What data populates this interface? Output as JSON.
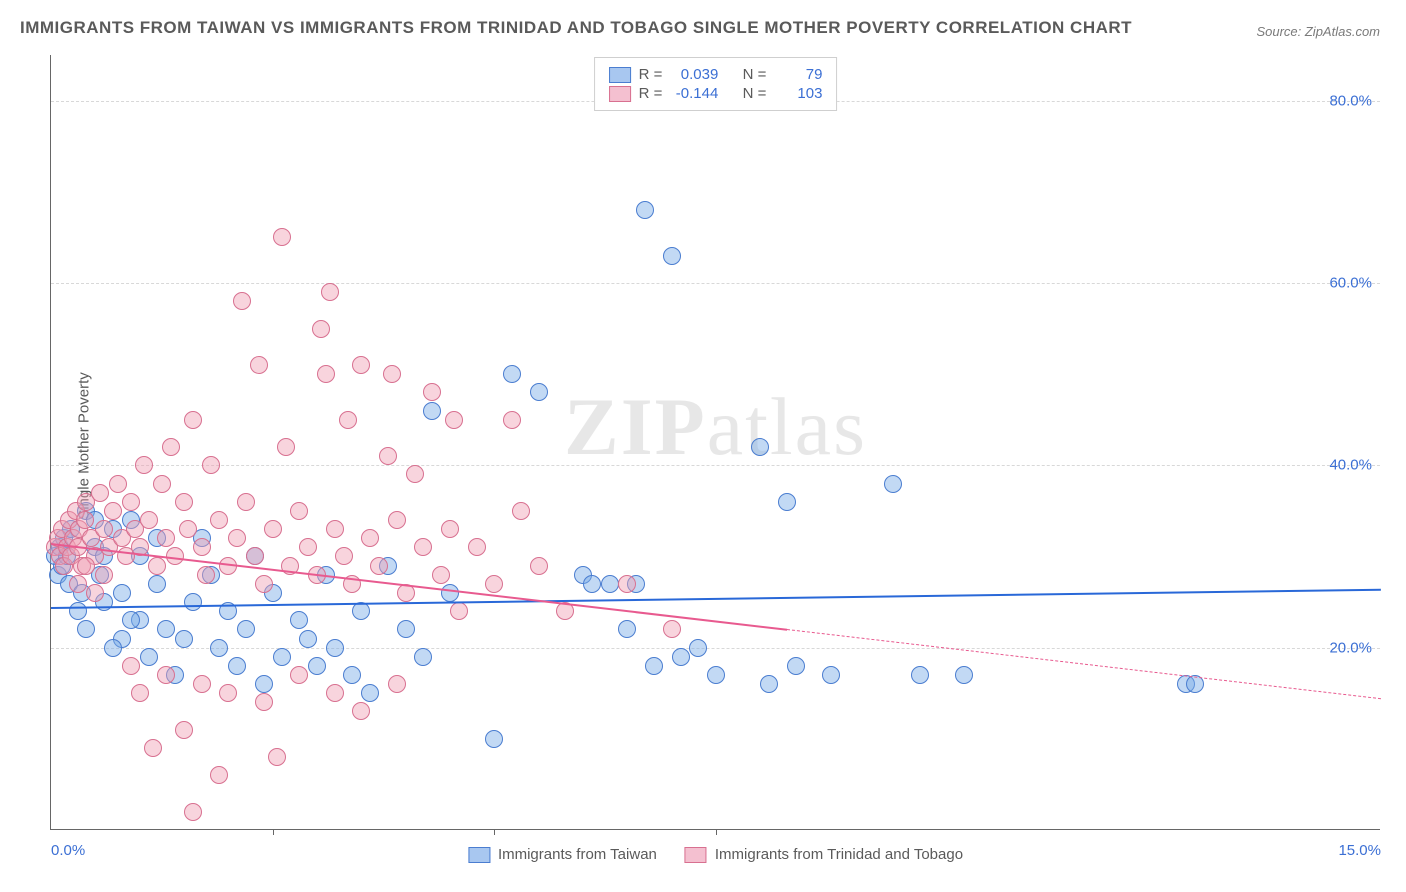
{
  "title": "IMMIGRANTS FROM TAIWAN VS IMMIGRANTS FROM TRINIDAD AND TOBAGO SINGLE MOTHER POVERTY CORRELATION CHART",
  "source": "Source: ZipAtlas.com",
  "ylabel": "Single Mother Poverty",
  "watermark_bold": "ZIP",
  "watermark_rest": "atlas",
  "chart": {
    "type": "scatter",
    "background_color": "#ffffff",
    "grid_color": "#d8d8d8",
    "axis_color": "#666666",
    "xlim": [
      0,
      15
    ],
    "ylim": [
      0,
      85
    ],
    "xticks": [
      0,
      15
    ],
    "xtick_labels": [
      "0.0%",
      "15.0%"
    ],
    "xtick_marks": [
      2.5,
      5.0,
      7.5
    ],
    "yticks": [
      20,
      40,
      60,
      80
    ],
    "ytick_labels": [
      "20.0%",
      "40.0%",
      "60.0%",
      "80.0%"
    ],
    "tick_color": "#3b6fd4",
    "tick_fontsize": 15,
    "point_radius": 9,
    "series": [
      {
        "name": "Immigrants from Taiwan",
        "color_fill": "rgba(120,170,230,0.45)",
        "color_stroke": "#4a7dd0",
        "swatch_fill": "#a8c7f0",
        "swatch_border": "#4a7dd0",
        "R": "0.039",
        "N": "79",
        "trend": {
          "y_start": 24.5,
          "y_end": 26.5,
          "color": "#2968d8",
          "solid_to_x": 15
        },
        "points": [
          [
            0.05,
            30
          ],
          [
            0.08,
            28
          ],
          [
            0.1,
            31
          ],
          [
            0.12,
            29
          ],
          [
            0.15,
            32
          ],
          [
            0.18,
            30
          ],
          [
            0.2,
            27
          ],
          [
            0.22,
            33
          ],
          [
            0.3,
            24
          ],
          [
            0.35,
            26
          ],
          [
            0.4,
            22
          ],
          [
            0.5,
            31
          ],
          [
            0.55,
            28
          ],
          [
            0.6,
            25
          ],
          [
            0.7,
            33
          ],
          [
            0.8,
            21
          ],
          [
            0.4,
            35
          ],
          [
            0.5,
            34
          ],
          [
            0.6,
            30
          ],
          [
            0.9,
            34
          ],
          [
            1.0,
            23
          ],
          [
            1.1,
            19
          ],
          [
            1.2,
            27
          ],
          [
            1.3,
            22
          ],
          [
            1.4,
            17
          ],
          [
            1.5,
            21
          ],
          [
            1.6,
            25
          ],
          [
            1.7,
            32
          ],
          [
            1.8,
            28
          ],
          [
            1.9,
            20
          ],
          [
            2.0,
            24
          ],
          [
            2.1,
            18
          ],
          [
            2.2,
            22
          ],
          [
            2.3,
            30
          ],
          [
            2.4,
            16
          ],
          [
            2.5,
            26
          ],
          [
            2.6,
            19
          ],
          [
            2.8,
            23
          ],
          [
            2.9,
            21
          ],
          [
            3.0,
            18
          ],
          [
            3.1,
            28
          ],
          [
            3.2,
            20
          ],
          [
            3.4,
            17
          ],
          [
            3.5,
            24
          ],
          [
            3.6,
            15
          ],
          [
            3.8,
            29
          ],
          [
            4.0,
            22
          ],
          [
            4.2,
            19
          ],
          [
            4.3,
            46
          ],
          [
            4.5,
            26
          ],
          [
            5.0,
            10
          ],
          [
            5.2,
            50
          ],
          [
            5.5,
            48
          ],
          [
            6.0,
            28
          ],
          [
            6.1,
            27
          ],
          [
            6.3,
            27
          ],
          [
            6.5,
            22
          ],
          [
            6.6,
            27
          ],
          [
            6.7,
            68
          ],
          [
            6.8,
            18
          ],
          [
            7.0,
            63
          ],
          [
            7.1,
            19
          ],
          [
            7.3,
            20
          ],
          [
            7.5,
            17
          ],
          [
            8.0,
            42
          ],
          [
            8.1,
            16
          ],
          [
            8.3,
            36
          ],
          [
            8.4,
            18
          ],
          [
            8.8,
            17
          ],
          [
            9.5,
            38
          ],
          [
            9.8,
            17
          ],
          [
            10.3,
            17
          ],
          [
            12.8,
            16
          ],
          [
            12.9,
            16
          ],
          [
            1.0,
            30
          ],
          [
            1.2,
            32
          ],
          [
            0.9,
            23
          ],
          [
            0.7,
            20
          ],
          [
            0.8,
            26
          ]
        ]
      },
      {
        "name": "Immigrants from Trinidad and Tobago",
        "color_fill": "rgba(240,160,180,0.45)",
        "color_stroke": "#d87090",
        "swatch_fill": "#f4c0d0",
        "swatch_border": "#d87090",
        "R": "-0.144",
        "N": "103",
        "trend": {
          "y_start": 31.5,
          "y_end": 14.5,
          "color": "#e85a8f",
          "solid_to_x": 8.3
        },
        "points": [
          [
            0.05,
            31
          ],
          [
            0.08,
            32
          ],
          [
            0.1,
            30
          ],
          [
            0.12,
            33
          ],
          [
            0.15,
            29
          ],
          [
            0.18,
            31
          ],
          [
            0.2,
            34
          ],
          [
            0.22,
            30
          ],
          [
            0.25,
            32
          ],
          [
            0.28,
            35
          ],
          [
            0.3,
            31
          ],
          [
            0.32,
            33
          ],
          [
            0.35,
            29
          ],
          [
            0.38,
            34
          ],
          [
            0.4,
            36
          ],
          [
            0.45,
            32
          ],
          [
            0.5,
            30
          ],
          [
            0.55,
            37
          ],
          [
            0.6,
            33
          ],
          [
            0.65,
            31
          ],
          [
            0.7,
            35
          ],
          [
            0.75,
            38
          ],
          [
            0.8,
            32
          ],
          [
            0.85,
            30
          ],
          [
            0.9,
            36
          ],
          [
            0.95,
            33
          ],
          [
            1.0,
            31
          ],
          [
            1.05,
            40
          ],
          [
            1.1,
            34
          ],
          [
            1.2,
            29
          ],
          [
            1.25,
            38
          ],
          [
            1.3,
            32
          ],
          [
            1.35,
            42
          ],
          [
            1.4,
            30
          ],
          [
            1.5,
            36
          ],
          [
            1.55,
            33
          ],
          [
            1.6,
            45
          ],
          [
            1.7,
            31
          ],
          [
            1.75,
            28
          ],
          [
            1.8,
            40
          ],
          [
            1.9,
            34
          ],
          [
            2.0,
            29
          ],
          [
            2.1,
            32
          ],
          [
            2.15,
            58
          ],
          [
            2.2,
            36
          ],
          [
            2.3,
            30
          ],
          [
            2.35,
            51
          ],
          [
            2.4,
            27
          ],
          [
            2.5,
            33
          ],
          [
            2.55,
            8
          ],
          [
            2.6,
            65
          ],
          [
            2.65,
            42
          ],
          [
            2.7,
            29
          ],
          [
            2.8,
            35
          ],
          [
            2.9,
            31
          ],
          [
            3.0,
            28
          ],
          [
            3.05,
            55
          ],
          [
            3.1,
            50
          ],
          [
            3.15,
            59
          ],
          [
            3.2,
            33
          ],
          [
            3.3,
            30
          ],
          [
            3.35,
            45
          ],
          [
            3.4,
            27
          ],
          [
            3.5,
            51
          ],
          [
            3.6,
            32
          ],
          [
            3.7,
            29
          ],
          [
            3.8,
            41
          ],
          [
            3.85,
            50
          ],
          [
            3.9,
            34
          ],
          [
            4.0,
            26
          ],
          [
            4.1,
            39
          ],
          [
            4.2,
            31
          ],
          [
            4.3,
            48
          ],
          [
            4.4,
            28
          ],
          [
            4.5,
            33
          ],
          [
            4.55,
            45
          ],
          [
            4.6,
            24
          ],
          [
            4.8,
            31
          ],
          [
            5.0,
            27
          ],
          [
            5.2,
            45
          ],
          [
            5.3,
            35
          ],
          [
            5.5,
            29
          ],
          [
            5.8,
            24
          ],
          [
            6.5,
            27
          ],
          [
            7.0,
            22
          ],
          [
            1.6,
            2
          ],
          [
            1.7,
            16
          ],
          [
            1.3,
            17
          ],
          [
            1.0,
            15
          ],
          [
            0.9,
            18
          ],
          [
            1.15,
            9
          ],
          [
            1.5,
            11
          ],
          [
            2.0,
            15
          ],
          [
            1.9,
            6
          ],
          [
            2.4,
            14
          ],
          [
            2.8,
            17
          ],
          [
            3.2,
            15
          ],
          [
            3.5,
            13
          ],
          [
            3.9,
            16
          ],
          [
            0.5,
            26
          ],
          [
            0.6,
            28
          ],
          [
            0.4,
            29
          ],
          [
            0.3,
            27
          ]
        ]
      }
    ]
  },
  "legend_top_labels": {
    "R": "R =",
    "N": "N ="
  }
}
